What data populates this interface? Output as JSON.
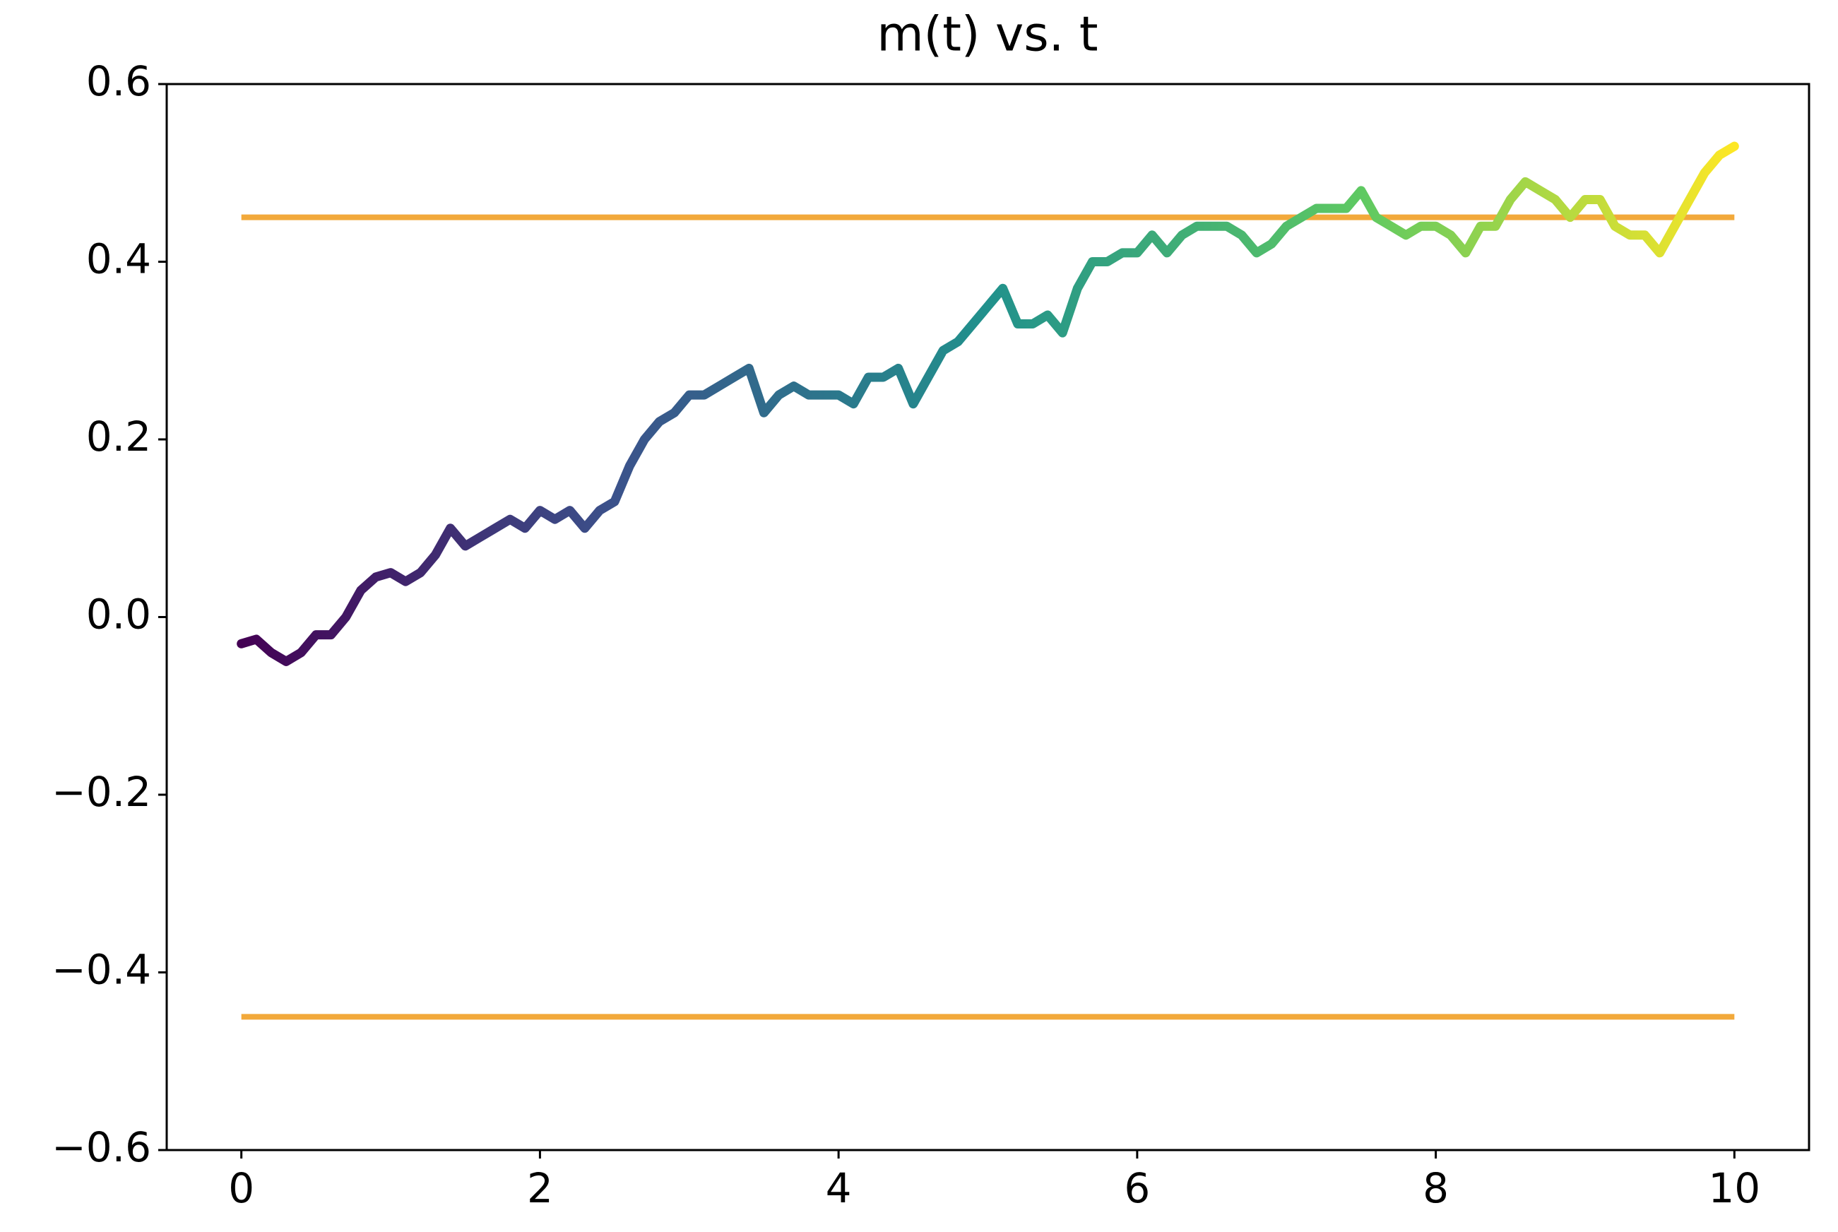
{
  "chart_data": {
    "type": "line",
    "title": "m(t) vs. t",
    "x": [
      0,
      0.1,
      0.2,
      0.3,
      0.4,
      0.5,
      0.6,
      0.7,
      0.8,
      0.9,
      1.0,
      1.1,
      1.2,
      1.3,
      1.4,
      1.5,
      1.6,
      1.7,
      1.8,
      1.9,
      2.0,
      2.1,
      2.2,
      2.3,
      2.4,
      2.5,
      2.6,
      2.7,
      2.8,
      2.9,
      3.0,
      3.1,
      3.2,
      3.3,
      3.4,
      3.5,
      3.6,
      3.7,
      3.8,
      3.9,
      4.0,
      4.1,
      4.2,
      4.3,
      4.4,
      4.5,
      4.6,
      4.7,
      4.8,
      4.9,
      5.0,
      5.1,
      5.2,
      5.3,
      5.4,
      5.5,
      5.6,
      5.7,
      5.8,
      5.9,
      6.0,
      6.1,
      6.2,
      6.3,
      6.4,
      6.5,
      6.6,
      6.7,
      6.8,
      6.9,
      7.0,
      7.1,
      7.2,
      7.3,
      7.4,
      7.5,
      7.6,
      7.7,
      7.8,
      7.9,
      8.0,
      8.1,
      8.2,
      8.3,
      8.4,
      8.5,
      8.6,
      8.7,
      8.8,
      8.9,
      9.0,
      9.1,
      9.2,
      9.3,
      9.4,
      9.5,
      9.6,
      9.7,
      9.8,
      9.9,
      10.0
    ],
    "series": [
      {
        "colormap": [
          "#440154",
          "#3b528b",
          "#21918c",
          "#5ec962",
          "#fde725"
        ],
        "values": [
          -0.03,
          -0.025,
          -0.04,
          -0.05,
          -0.04,
          -0.02,
          -0.02,
          0.0,
          0.03,
          0.045,
          0.05,
          0.04,
          0.05,
          0.07,
          0.1,
          0.08,
          0.09,
          0.1,
          0.11,
          0.1,
          0.12,
          0.11,
          0.12,
          0.1,
          0.12,
          0.13,
          0.17,
          0.2,
          0.22,
          0.23,
          0.25,
          0.25,
          0.26,
          0.27,
          0.28,
          0.23,
          0.25,
          0.26,
          0.25,
          0.25,
          0.25,
          0.24,
          0.27,
          0.27,
          0.28,
          0.24,
          0.27,
          0.3,
          0.31,
          0.33,
          0.35,
          0.37,
          0.33,
          0.33,
          0.34,
          0.32,
          0.37,
          0.4,
          0.4,
          0.41,
          0.41,
          0.43,
          0.41,
          0.43,
          0.44,
          0.44,
          0.44,
          0.43,
          0.41,
          0.42,
          0.44,
          0.45,
          0.46,
          0.46,
          0.46,
          0.48,
          0.45,
          0.44,
          0.43,
          0.44,
          0.44,
          0.43,
          0.41,
          0.44,
          0.44,
          0.47,
          0.49,
          0.48,
          0.47,
          0.45,
          0.47,
          0.47,
          0.44,
          0.43,
          0.43,
          0.41,
          0.44,
          0.47,
          0.5,
          0.52,
          0.53
        ]
      }
    ],
    "hlines": [
      {
        "value": 0.45,
        "color": "#f2a93b"
      },
      {
        "value": -0.45,
        "color": "#f2a93b"
      }
    ],
    "xlim": [
      -0.5,
      10.5
    ],
    "xticks": [
      0,
      2,
      4,
      6,
      8,
      10
    ],
    "ylim": [
      -0.6,
      0.6
    ],
    "yticks": [
      {
        "value": -0.6,
        "label": "−0.6"
      },
      {
        "value": -0.4,
        "label": "−0.4"
      },
      {
        "value": -0.2,
        "label": "−0.2"
      },
      {
        "value": 0,
        "label": "0.0"
      },
      0.2,
      0.4,
      0.6
    ]
  }
}
